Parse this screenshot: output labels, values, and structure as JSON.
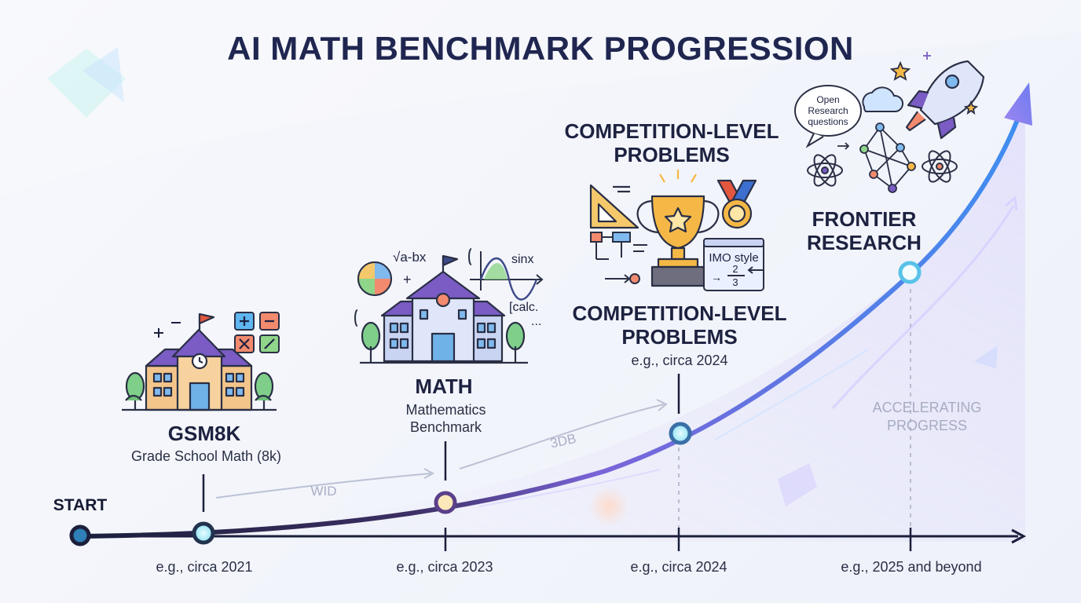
{
  "title": "AI MATH BENCHMARK PROGRESSION",
  "start_label": "START",
  "stages": [
    {
      "name": "GSM8K",
      "description": "Grade School Math (8k)",
      "year": "e.g., circa 2021"
    },
    {
      "name": "MATH",
      "description": "Mathematics Benchmark",
      "year": "e.g., circa 2023"
    },
    {
      "name": "COMPETITION-LEVEL PROBLEMS",
      "header": "COMPETITION-LEVEL PROBLEMS",
      "note": "e.g., circa 2024",
      "year": "e.g., circa 2024"
    },
    {
      "name": "FRONTIER RESEARCH",
      "year": "e.g., 2025 and beyond"
    }
  ],
  "side_label": "ACCELERATING PROGRESS",
  "arrow_labels": [
    "WID",
    "3DB"
  ],
  "icon_text": {
    "math": {
      "sqrt": "√a-bx",
      "sin": "sinx",
      "calc": "[calc.",
      "dots": "..."
    },
    "competition": {
      "imo": "IMO style",
      "num": "2",
      "den": "3"
    },
    "frontier": {
      "bubble_1": "Open",
      "bubble_2": "Research",
      "bubble_3": "questions"
    }
  },
  "icons": [
    "school-building-icon",
    "calculator-icon",
    "university-building-icon",
    "formula-icon",
    "trophy-icon",
    "medal-icon",
    "triangle-ruler-icon",
    "flowchart-icon",
    "rocket-icon",
    "atom-icon",
    "network-icon",
    "cloud-icon",
    "star-icon",
    "speech-bubble-icon"
  ],
  "colors": {
    "title": "#1f2650",
    "curve_start": "#1b1f3b",
    "curve_mid": "#7a64d8",
    "curve_end": "#3f8ef0",
    "milestone_glow": "#7fe3f5"
  }
}
